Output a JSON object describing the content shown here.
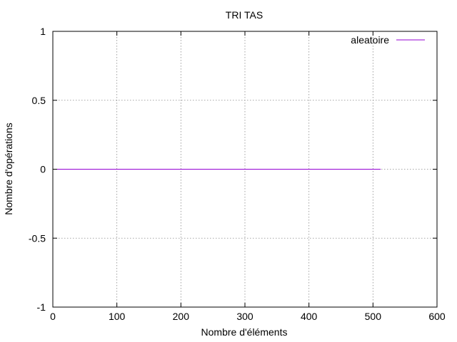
{
  "chart_data": {
    "type": "line",
    "title": "TRI TAS",
    "xlabel": "Nombre d'éléments",
    "ylabel": "Nombre d'opérations",
    "xlim": [
      0,
      600
    ],
    "ylim": [
      -1,
      1
    ],
    "xticks": [
      0,
      100,
      200,
      300,
      400,
      500,
      600
    ],
    "yticks": [
      -1,
      -0.5,
      0,
      0.5,
      1
    ],
    "xtick_labels": [
      "0",
      "100",
      "200",
      "300",
      "400",
      "500",
      "600"
    ],
    "ytick_labels": [
      "-1",
      "-0.5",
      "0",
      "0.5",
      "1"
    ],
    "grid": true,
    "legend_position": "top-right",
    "series": [
      {
        "name": "aleatoire",
        "color": "#9400d3",
        "x": [
          0,
          512
        ],
        "y": [
          0,
          0
        ]
      }
    ]
  }
}
